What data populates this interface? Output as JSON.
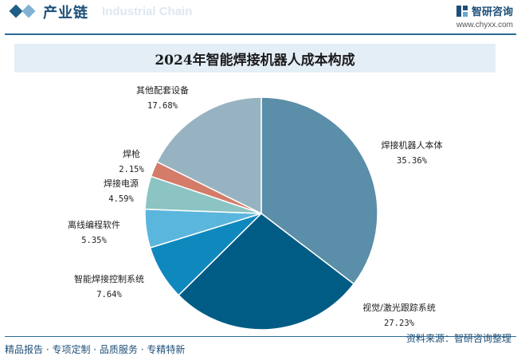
{
  "header": {
    "section_title": "产业链",
    "watermark_text": "Industrial Chain",
    "brand_name": "智研咨询",
    "brand_url": "www.chyxx.com"
  },
  "chart_data": {
    "type": "pie",
    "title": "2024年智能焊接机器人成本构成",
    "slices": [
      {
        "label": "焊接机器人本体",
        "value": 35.36,
        "value_label": "35.36%",
        "color": "#5b8ea8"
      },
      {
        "label": "视觉/激光跟踪系统",
        "value": 27.23,
        "value_label": "27.23%",
        "color": "#015c85"
      },
      {
        "label": "智能焊接控制系统",
        "value": 7.64,
        "value_label": "7.64%",
        "color": "#0f88be"
      },
      {
        "label": "离线编程软件",
        "value": 5.35,
        "value_label": "5.35%",
        "color": "#5bb6dd"
      },
      {
        "label": "焊接电源",
        "value": 4.59,
        "value_label": "4.59%",
        "color": "#8bc4c2"
      },
      {
        "label": "焊枪",
        "value": 2.15,
        "value_label": "2.15%",
        "color": "#d47c69"
      },
      {
        "label": "其他配套设备",
        "value": 17.68,
        "value_label": "17.68%",
        "color": "#97b3c1"
      }
    ]
  },
  "footer": {
    "left": "精品报告 · 专项定制 · 品质服务 · 专精特新",
    "source": "资料来源：智研咨询整理"
  }
}
